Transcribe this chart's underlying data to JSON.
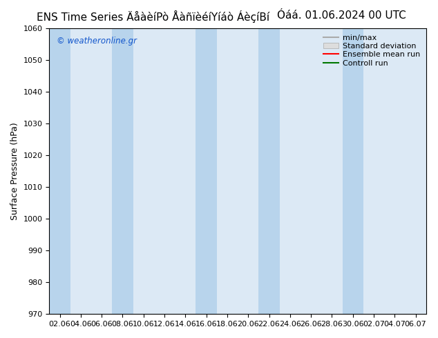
{
  "title": "ENS Time Series ÄåàèíPò Åàñïèéíýíáò Áèçíþí",
  "title_right": "Óáá. 01.06.2024 00 UTC",
  "ylabel": "Surface Pressure (hPa)",
  "ylim": [
    970,
    1060
  ],
  "yticks": [
    970,
    980,
    990,
    1000,
    1010,
    1020,
    1030,
    1040,
    1050,
    1060
  ],
  "xtick_labels": [
    "02.06",
    "04.06",
    "06.06",
    "08.06",
    "10.06",
    "12.06",
    "14.06",
    "16.06",
    "18.06",
    "20.06",
    "22.06",
    "24.06",
    "26.06",
    "28.06",
    "30.06",
    "02.07",
    "04.07",
    "06.07"
  ],
  "num_xticks": 18,
  "background_color": "#ffffff",
  "plot_bg_color": "#dce9f5",
  "band_positions": [
    0,
    3,
    7,
    9,
    14
  ],
  "band_color": "#b8d4ec",
  "legend_minmax_color": "#aaaaaa",
  "legend_stddev_color": "#cccccc",
  "legend_mean_color": "#ff0000",
  "legend_control_color": "#007700",
  "watermark": "© weatheronline.gr",
  "title_fontsize": 11,
  "axis_fontsize": 9,
  "tick_fontsize": 8,
  "legend_fontsize": 8
}
